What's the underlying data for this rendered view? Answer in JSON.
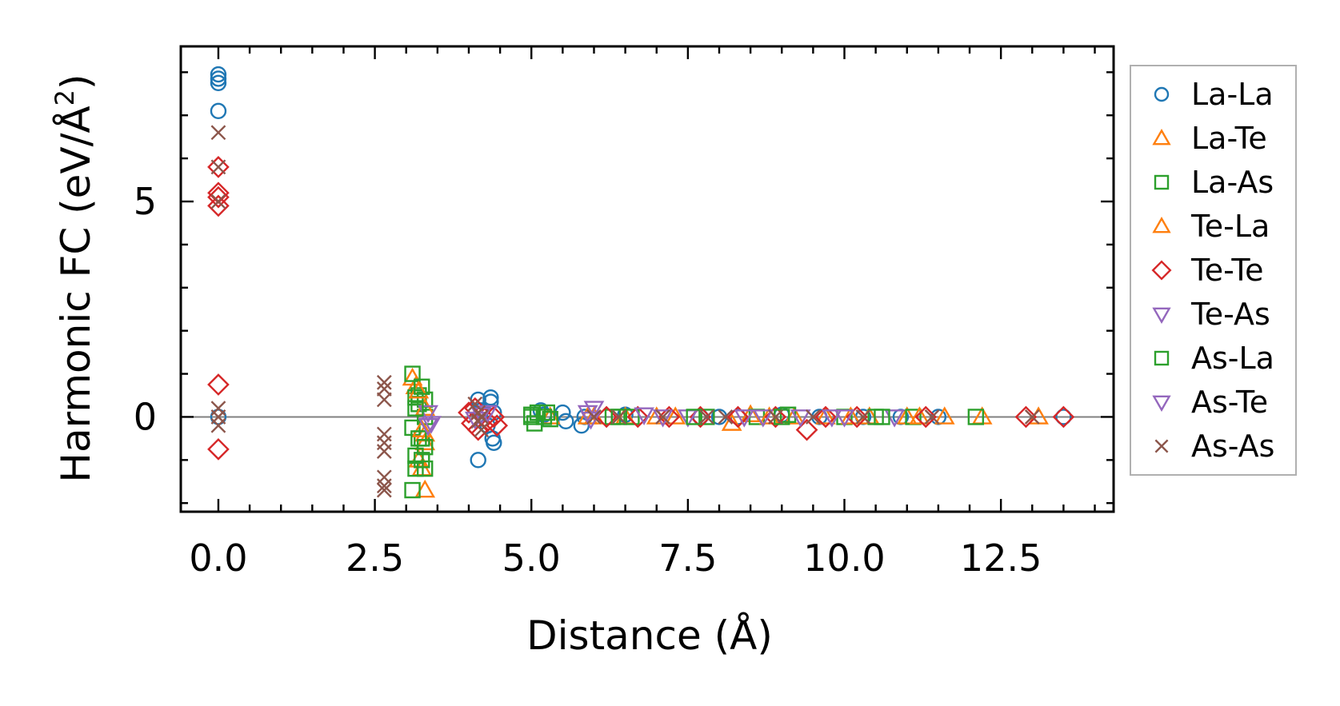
{
  "chart_data": {
    "type": "scatter",
    "xlabel": "Distance (Å)",
    "ylabel_main": "Harmonic FC (eV/Å",
    "ylabel_sup": "2",
    "ylabel_end": ")",
    "xlim": [
      -0.6,
      14.3
    ],
    "ylim": [
      -2.2,
      8.6
    ],
    "xticks": [
      0.0,
      2.5,
      5.0,
      7.5,
      10.0,
      12.5
    ],
    "xtick_labels": [
      "0.0",
      "2.5",
      "5.0",
      "7.5",
      "10.0",
      "12.5"
    ],
    "yticks": [
      0,
      5
    ],
    "ytick_labels": [
      "0",
      "5"
    ],
    "zero_line": true,
    "grid": false,
    "legend_position": "outside-right",
    "series": [
      {
        "name": "La-La",
        "marker": "circle",
        "color": "#1f77b4",
        "x": [
          0,
          0,
          0,
          0,
          0,
          4.15,
          4.15,
          4.2,
          4.3,
          4.35,
          4.35,
          4.38,
          4.4,
          4.4,
          5.15,
          5.2,
          5.5,
          5.55,
          5.8,
          5.85,
          6.5,
          7.7,
          8.0,
          8.3,
          9.0,
          9.6,
          10.3,
          10.9,
          11.5,
          13.5
        ],
        "y": [
          7.95,
          7.85,
          7.75,
          7.1,
          0,
          -1.0,
          0.4,
          0.15,
          -0.2,
          0.45,
          0.35,
          -0.5,
          -0.6,
          0.1,
          0.15,
          0.05,
          0.1,
          -0.1,
          -0.2,
          0.0,
          0.05,
          0.0,
          0.0,
          0.0,
          0.05,
          0.0,
          0.0,
          0.0,
          0.0,
          0.0
        ]
      },
      {
        "name": "La-Te",
        "marker": "triangle-up",
        "color": "#ff7f0e",
        "x": [
          3.1,
          3.15,
          3.2,
          3.25,
          3.3,
          3.3,
          3.3,
          5.3,
          5.9,
          6.5,
          7.0,
          8.2,
          8.5,
          9.2,
          9.7,
          10.4,
          11.0,
          11.6,
          12.2,
          13.1
        ],
        "y": [
          0.9,
          0.7,
          -1.0,
          -1.2,
          -0.4,
          -1.7,
          -0.6,
          0.0,
          0.0,
          0.0,
          0.0,
          -0.15,
          0.05,
          0.0,
          0.0,
          0.0,
          0.0,
          0.0,
          0.0,
          0.0
        ]
      },
      {
        "name": "La-As",
        "marker": "square",
        "color": "#2ca02c",
        "x": [
          3.1,
          3.1,
          3.1,
          3.15,
          3.15,
          3.15,
          3.2,
          3.2,
          3.25,
          3.25,
          3.3,
          3.3,
          3.3,
          3.3,
          5.0,
          5.05,
          5.1,
          5.2,
          5.3,
          6.3,
          6.6,
          7.8,
          8.6,
          9.1,
          10.0,
          10.5,
          11.1,
          12.1
        ],
        "y": [
          1.0,
          -0.25,
          -1.7,
          0.45,
          -0.9,
          -1.2,
          0.5,
          0.3,
          -0.5,
          -1.0,
          0.4,
          -0.7,
          -1.2,
          0.0,
          0.0,
          -0.15,
          0.1,
          0.0,
          -0.05,
          0.0,
          0.0,
          0.0,
          0.0,
          0.05,
          0.0,
          0.0,
          0.0,
          0.0
        ]
      },
      {
        "name": "Te-La",
        "marker": "triangle-up",
        "color": "#ff7f0e",
        "x": [
          3.2,
          3.25,
          3.3,
          6.0,
          7.3,
          8.8,
          10.1,
          11.2
        ],
        "y": [
          0.6,
          -0.3,
          0.2,
          0.0,
          0.0,
          0.0,
          0.0,
          0.0
        ]
      },
      {
        "name": "Te-Te",
        "marker": "diamond",
        "color": "#d62728",
        "x": [
          0,
          0,
          0,
          0,
          0,
          0,
          4.0,
          4.05,
          4.1,
          4.15,
          4.2,
          4.3,
          4.4,
          4.45,
          6.2,
          6.7,
          7.2,
          7.7,
          8.3,
          8.9,
          9.4,
          9.7,
          10.2,
          11.3,
          12.9,
          13.5
        ],
        "y": [
          5.8,
          5.2,
          4.9,
          0.75,
          -0.75,
          5.1,
          0.1,
          -0.15,
          0.2,
          -0.3,
          0.05,
          -0.1,
          0.0,
          -0.2,
          0.0,
          0.0,
          0.0,
          0.0,
          0.0,
          0.0,
          -0.3,
          0.0,
          0.0,
          0.0,
          0.0,
          0.0
        ]
      },
      {
        "name": "Te-As",
        "marker": "triangle-down",
        "color": "#9467bd",
        "x": [
          3.35,
          3.4,
          4.1,
          4.3,
          5.9,
          6.0,
          6.8,
          7.5,
          8.4,
          9.3,
          10.0,
          10.8
        ],
        "y": [
          0.1,
          -0.15,
          -0.05,
          0.1,
          0.1,
          0.2,
          0.05,
          0.0,
          0.0,
          0.0,
          0.0,
          0.0
        ]
      },
      {
        "name": "As-La",
        "marker": "square",
        "color": "#2ca02c",
        "x": [
          3.15,
          3.2,
          3.25,
          5.0,
          5.25,
          6.4,
          7.6,
          9.0,
          10.6
        ],
        "y": [
          0.2,
          -0.5,
          0.7,
          0.05,
          0.1,
          0.0,
          0.0,
          0.0,
          0.0
        ]
      },
      {
        "name": "As-Te",
        "marker": "triangle-down",
        "color": "#9467bd",
        "x": [
          3.35,
          4.2,
          5.95,
          7.1,
          8.7,
          9.8
        ],
        "y": [
          -0.2,
          0.05,
          -0.05,
          0.0,
          0.0,
          0.0
        ]
      },
      {
        "name": "As-As",
        "marker": "x",
        "color": "#8c564b",
        "x": [
          0,
          0,
          0,
          0,
          0,
          0,
          2.65,
          2.65,
          2.65,
          2.65,
          2.65,
          2.65,
          2.65,
          2.65,
          2.65,
          4.1,
          4.15,
          4.15,
          4.2,
          4.2,
          6.0,
          6.4,
          7.1,
          7.8,
          8.1,
          8.9,
          9.5,
          10.3,
          11.4,
          13.0
        ],
        "y": [
          6.6,
          5.8,
          5.0,
          0.2,
          -0.2,
          0.0,
          0.8,
          0.65,
          0.4,
          -0.4,
          -0.8,
          -0.6,
          -1.4,
          -1.6,
          -1.7,
          0.3,
          0.1,
          -0.1,
          0.0,
          -0.3,
          0.0,
          0.0,
          0.0,
          0.0,
          0.0,
          0.0,
          0.0,
          0.0,
          0.0,
          0.0
        ]
      }
    ]
  }
}
